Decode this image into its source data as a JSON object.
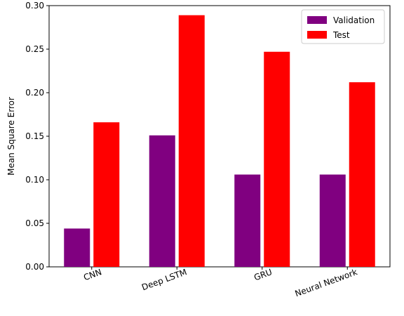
{
  "chart_data": {
    "type": "bar",
    "categories": [
      "CNN",
      "Deep LSTM",
      "GRU",
      "Neural Network"
    ],
    "series": [
      {
        "name": "Validation",
        "values": [
          0.044,
          0.151,
          0.106,
          0.106
        ],
        "color": "#800080"
      },
      {
        "name": "Test",
        "values": [
          0.166,
          0.289,
          0.247,
          0.212
        ],
        "color": "#ff0000"
      }
    ],
    "xlabel": "",
    "ylabel": "Mean Square Error",
    "ylim": [
      0,
      0.3
    ],
    "yticks": [
      "0.00",
      "0.05",
      "0.10",
      "0.15",
      "0.20",
      "0.25",
      "0.30"
    ],
    "xtick_rotation": 20,
    "grid": false,
    "legend_position": "top-right"
  }
}
